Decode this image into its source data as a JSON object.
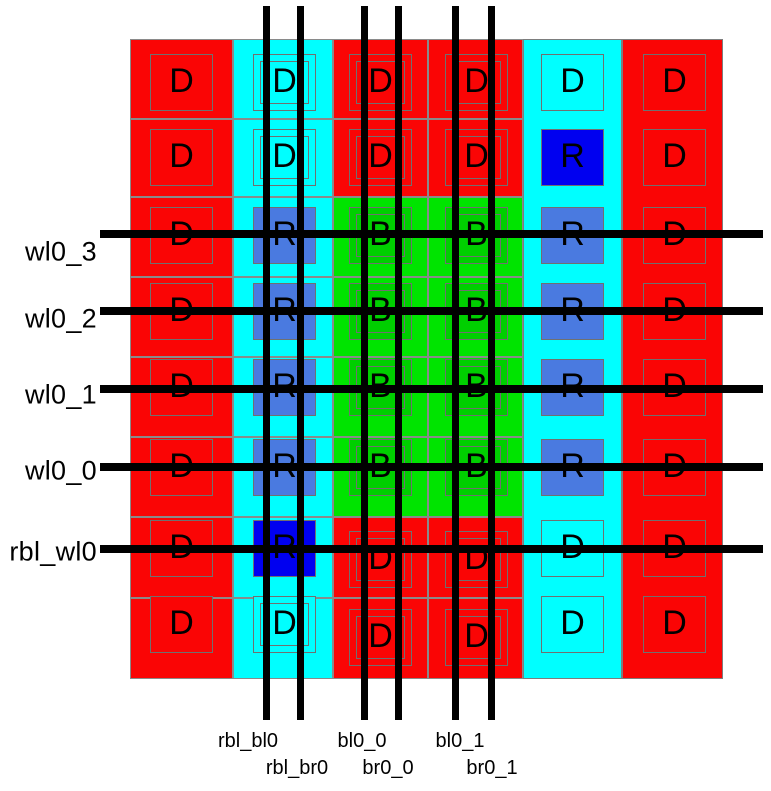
{
  "canvas": {
    "background": "#ffffff"
  },
  "colors": {
    "dummy_red": "#fa0505",
    "strap_cyan": "#00ffff",
    "bitcell_green_region": "#00e400",
    "bitcell_green": "#00cf00",
    "replica_blue": "#4a7ae0",
    "replica_dark_blue": "#0000f0",
    "wire_black": "#000000",
    "outline_gray": "#7d7d7d",
    "label_black": "#000000"
  },
  "array": {
    "rows": 8,
    "cols": 6,
    "grid": [
      [
        "D",
        "D",
        "D",
        "D",
        "D",
        "D"
      ],
      [
        "D",
        "D",
        "D",
        "D",
        "R",
        "D"
      ],
      [
        "D",
        "R",
        "B",
        "B",
        "R",
        "D"
      ],
      [
        "D",
        "R",
        "B",
        "B",
        "R",
        "D"
      ],
      [
        "D",
        "R",
        "B",
        "B",
        "R",
        "D"
      ],
      [
        "D",
        "R",
        "B",
        "B",
        "R",
        "D"
      ],
      [
        "D",
        "R",
        "D",
        "D",
        "D",
        "D"
      ],
      [
        "D",
        "D",
        "D",
        "D",
        "D",
        "D"
      ]
    ],
    "fills": [
      [
        "red",
        "cyan",
        "red",
        "red",
        "cyan",
        "red"
      ],
      [
        "red",
        "cyan",
        "red",
        "red",
        "dblue",
        "red"
      ],
      [
        "red",
        "cblue",
        "green",
        "green",
        "cblue",
        "red"
      ],
      [
        "red",
        "cblue",
        "green",
        "green",
        "cblue",
        "red"
      ],
      [
        "red",
        "cblue",
        "green",
        "green",
        "cblue",
        "red"
      ],
      [
        "red",
        "cblue",
        "green",
        "green",
        "cblue",
        "red"
      ],
      [
        "red",
        "dblue",
        "red",
        "red",
        "cyan",
        "red"
      ],
      [
        "red",
        "cyan",
        "red",
        "red",
        "cyan",
        "red"
      ]
    ]
  },
  "wordlines": {
    "labels": [
      "wl0_3",
      "wl0_2",
      "wl0_1",
      "wl0_0",
      "rbl_wl0"
    ]
  },
  "bitlines": {
    "labels": [
      "rbl_bl0",
      "rbl_br0",
      "bl0_0",
      "br0_0",
      "bl0_1",
      "br0_1"
    ]
  }
}
